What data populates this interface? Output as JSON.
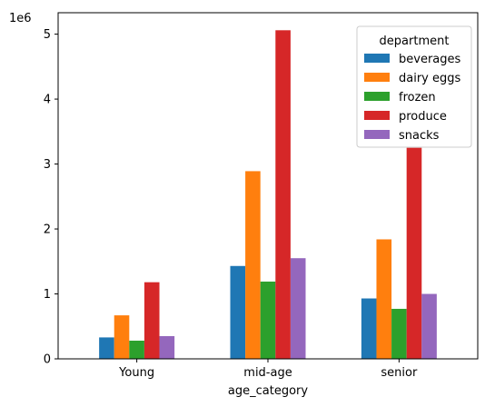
{
  "chart_data": {
    "type": "bar",
    "categories": [
      "Young",
      "mid-age",
      "senior"
    ],
    "xlabel": "age_category",
    "ylabel": "",
    "ylim": [
      0,
      5330000
    ],
    "y_ticks": [
      0,
      1,
      2,
      3,
      4,
      5
    ],
    "y_tick_labels": [
      "0",
      "1",
      "2",
      "3",
      "4",
      "5"
    ],
    "offset_label": "1e6",
    "y_unit_multiplier": 1000000,
    "legend": {
      "title": "department",
      "placement": "top-right"
    },
    "grid": false,
    "series": [
      {
        "name": "beverages",
        "color": "#1f77b4",
        "values": [
          330000,
          1430000,
          930000
        ]
      },
      {
        "name": "dairy eggs",
        "color": "#ff7f0e",
        "values": [
          670000,
          2890000,
          1840000
        ]
      },
      {
        "name": "frozen",
        "color": "#2ca02c",
        "values": [
          280000,
          1190000,
          770000
        ]
      },
      {
        "name": "produce",
        "color": "#d62728",
        "values": [
          1180000,
          5060000,
          3250000
        ]
      },
      {
        "name": "snacks",
        "color": "#9467bd",
        "values": [
          350000,
          1550000,
          1000000
        ]
      }
    ]
  }
}
